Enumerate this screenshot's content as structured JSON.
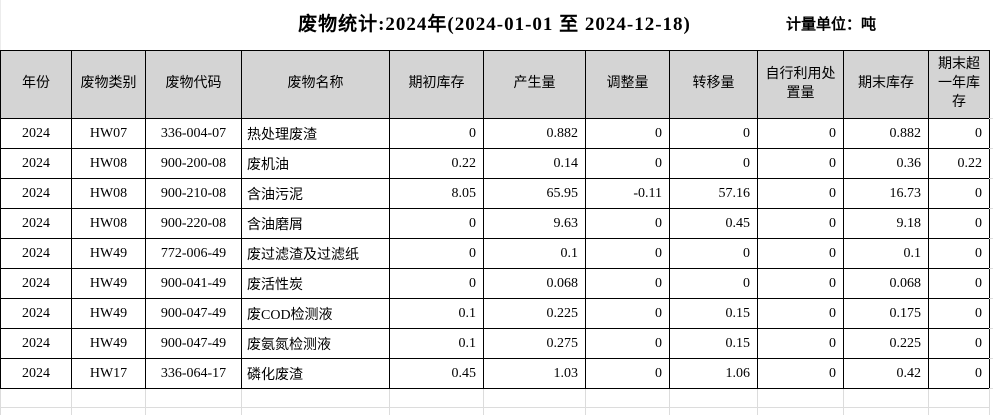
{
  "header": {
    "title": "废物统计:2024年(2024-01-01 至 2024-12-18)",
    "unit_label": "计量单位：吨"
  },
  "table": {
    "columns": [
      {
        "label": "年份"
      },
      {
        "label": "废物类别"
      },
      {
        "label": "废物代码"
      },
      {
        "label": "废物名称"
      },
      {
        "label": "期初库存"
      },
      {
        "label": "产生量"
      },
      {
        "label": "调整量"
      },
      {
        "label": "转移量"
      },
      {
        "label": "自行利用处置量"
      },
      {
        "label": "期末库存"
      },
      {
        "label": "期末超一年库存"
      }
    ],
    "rows": [
      [
        "2024",
        "HW07",
        "336-004-07",
        "热处理废渣",
        "0",
        "0.882",
        "0",
        "0",
        "0",
        "0.882",
        "0"
      ],
      [
        "2024",
        "HW08",
        "900-200-08",
        "废机油",
        "0.22",
        "0.14",
        "0",
        "0",
        "0",
        "0.36",
        "0.22"
      ],
      [
        "2024",
        "HW08",
        "900-210-08",
        "含油污泥",
        "8.05",
        "65.95",
        "-0.11",
        "57.16",
        "0",
        "16.73",
        "0"
      ],
      [
        "2024",
        "HW08",
        "900-220-08",
        "含油磨屑",
        "0",
        "9.63",
        "0",
        "0.45",
        "0",
        "9.18",
        "0"
      ],
      [
        "2024",
        "HW49",
        "772-006-49",
        "废过滤渣及过滤纸",
        "0",
        "0.1",
        "0",
        "0",
        "0",
        "0.1",
        "0"
      ],
      [
        "2024",
        "HW49",
        "900-041-49",
        "废活性炭",
        "0",
        "0.068",
        "0",
        "0",
        "0",
        "0.068",
        "0"
      ],
      [
        "2024",
        "HW49",
        "900-047-49",
        "废COD检测液",
        "0.1",
        "0.225",
        "0",
        "0.15",
        "0",
        "0.175",
        "0"
      ],
      [
        "2024",
        "HW49",
        "900-047-49",
        "废氨氮检测液",
        "0.1",
        "0.275",
        "0",
        "0.15",
        "0",
        "0.225",
        "0"
      ],
      [
        "2024",
        "HW17",
        "336-064-17",
        "磷化废渣",
        "0.45",
        "1.03",
        "0",
        "1.06",
        "0",
        "0.42",
        "0"
      ]
    ]
  },
  "colors": {
    "header_bg": "#d4d4d4",
    "table_border": "#000000",
    "ghost_grid": "#dcdcdc",
    "text": "#000000",
    "background": "#ffffff"
  }
}
